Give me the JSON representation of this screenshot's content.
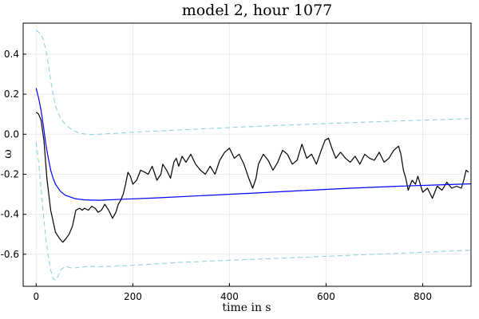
{
  "chart_data": {
    "type": "line",
    "title": "model 2,  hour 1077",
    "xlabel": "time in s",
    "ylabel": "ω",
    "xlim": [
      -27,
      900
    ],
    "ylim": [
      -0.76,
      0.555
    ],
    "xticks": [
      0,
      200,
      400,
      600,
      800
    ],
    "yticks": [
      -0.6,
      -0.4,
      -0.2,
      0.0,
      0.2,
      0.4
    ],
    "xtick_labels": [
      "0",
      "200",
      "400",
      "600",
      "800"
    ],
    "ytick_labels": [
      "-0.6",
      "-0.4",
      "-0.2",
      "0.0",
      "0.2",
      "0.4"
    ],
    "grid": true,
    "legend": "none",
    "series": [
      {
        "color": "#000000",
        "style": "solid",
        "x": [
          0,
          5,
          10,
          16,
          22,
          30,
          40,
          48,
          55,
          62,
          68,
          75,
          82,
          90,
          95,
          100,
          108,
          115,
          122,
          128,
          135,
          142,
          150,
          158,
          165,
          170,
          175,
          180,
          185,
          190,
          195,
          200,
          208,
          216,
          225,
          232,
          240,
          250,
          258,
          262,
          270,
          278,
          285,
          290,
          295,
          302,
          310,
          320,
          330,
          340,
          350,
          360,
          370,
          380,
          390,
          400,
          410,
          420,
          430,
          440,
          448,
          455,
          460,
          470,
          480,
          490,
          500,
          510,
          520,
          530,
          540,
          550,
          560,
          570,
          580,
          590,
          598,
          605,
          612,
          620,
          630,
          640,
          650,
          660,
          670,
          680,
          690,
          700,
          710,
          720,
          730,
          740,
          750,
          755,
          760,
          765,
          770,
          778,
          785,
          790,
          800,
          810,
          820,
          830,
          840,
          850,
          860,
          870,
          880,
          885,
          890,
          895
        ],
        "y": [
          0.11,
          0.1,
          0.07,
          -0.03,
          -0.22,
          -0.38,
          -0.49,
          -0.52,
          -0.54,
          -0.52,
          -0.5,
          -0.46,
          -0.38,
          -0.37,
          -0.38,
          -0.37,
          -0.38,
          -0.36,
          -0.37,
          -0.39,
          -0.38,
          -0.35,
          -0.38,
          -0.42,
          -0.39,
          -0.35,
          -0.33,
          -0.3,
          -0.25,
          -0.19,
          -0.21,
          -0.25,
          -0.23,
          -0.18,
          -0.19,
          -0.2,
          -0.16,
          -0.23,
          -0.2,
          -0.15,
          -0.18,
          -0.22,
          -0.14,
          -0.12,
          -0.16,
          -0.11,
          -0.14,
          -0.1,
          -0.15,
          -0.18,
          -0.2,
          -0.16,
          -0.2,
          -0.13,
          -0.09,
          -0.07,
          -0.12,
          -0.1,
          -0.15,
          -0.22,
          -0.27,
          -0.22,
          -0.15,
          -0.1,
          -0.13,
          -0.18,
          -0.14,
          -0.08,
          -0.1,
          -0.15,
          -0.13,
          -0.05,
          -0.12,
          -0.1,
          -0.15,
          -0.08,
          -0.03,
          -0.02,
          -0.07,
          -0.12,
          -0.09,
          -0.12,
          -0.14,
          -0.11,
          -0.15,
          -0.1,
          -0.12,
          -0.13,
          -0.09,
          -0.14,
          -0.12,
          -0.08,
          -0.06,
          -0.1,
          -0.18,
          -0.22,
          -0.28,
          -0.23,
          -0.25,
          -0.21,
          -0.29,
          -0.27,
          -0.32,
          -0.26,
          -0.28,
          -0.24,
          -0.27,
          -0.26,
          -0.27,
          -0.23,
          -0.18,
          -0.19
        ]
      },
      {
        "color": "#0000ff",
        "style": "solid",
        "x": [
          0,
          5,
          10,
          15,
          20,
          25,
          30,
          35,
          40,
          50,
          60,
          80,
          100,
          130,
          180,
          250,
          350,
          450,
          550,
          650,
          750,
          850,
          900
        ],
        "y": [
          0.23,
          0.18,
          0.12,
          0.04,
          -0.05,
          -0.12,
          -0.18,
          -0.22,
          -0.25,
          -0.285,
          -0.305,
          -0.322,
          -0.328,
          -0.33,
          -0.325,
          -0.318,
          -0.306,
          -0.294,
          -0.282,
          -0.27,
          -0.26,
          -0.252,
          -0.248
        ]
      },
      {
        "color": "#87cedc",
        "style": "dashed",
        "x": [
          0,
          5,
          10,
          15,
          20,
          25,
          30,
          35,
          40,
          50,
          60,
          75,
          90,
          110,
          130,
          160,
          200,
          300,
          400,
          500,
          600,
          700,
          800,
          900
        ],
        "y": [
          0.52,
          0.51,
          0.5,
          0.47,
          0.42,
          0.35,
          0.27,
          0.2,
          0.14,
          0.08,
          0.05,
          0.02,
          0.005,
          -0.002,
          0.0,
          0.004,
          0.01,
          0.022,
          0.033,
          0.044,
          0.053,
          0.062,
          0.07,
          0.078
        ]
      },
      {
        "color": "#87cedc",
        "style": "dashed",
        "x": [
          0,
          5,
          10,
          15,
          20,
          25,
          30,
          35,
          40,
          45,
          50,
          60,
          75,
          90,
          110,
          130,
          160,
          200,
          300,
          400,
          500,
          600,
          700,
          800,
          900
        ],
        "y": [
          -0.04,
          -0.14,
          -0.27,
          -0.4,
          -0.52,
          -0.61,
          -0.68,
          -0.72,
          -0.73,
          -0.71,
          -0.68,
          -0.66,
          -0.67,
          -0.665,
          -0.66,
          -0.662,
          -0.66,
          -0.655,
          -0.64,
          -0.63,
          -0.62,
          -0.61,
          -0.6,
          -0.59,
          -0.58
        ]
      }
    ]
  }
}
